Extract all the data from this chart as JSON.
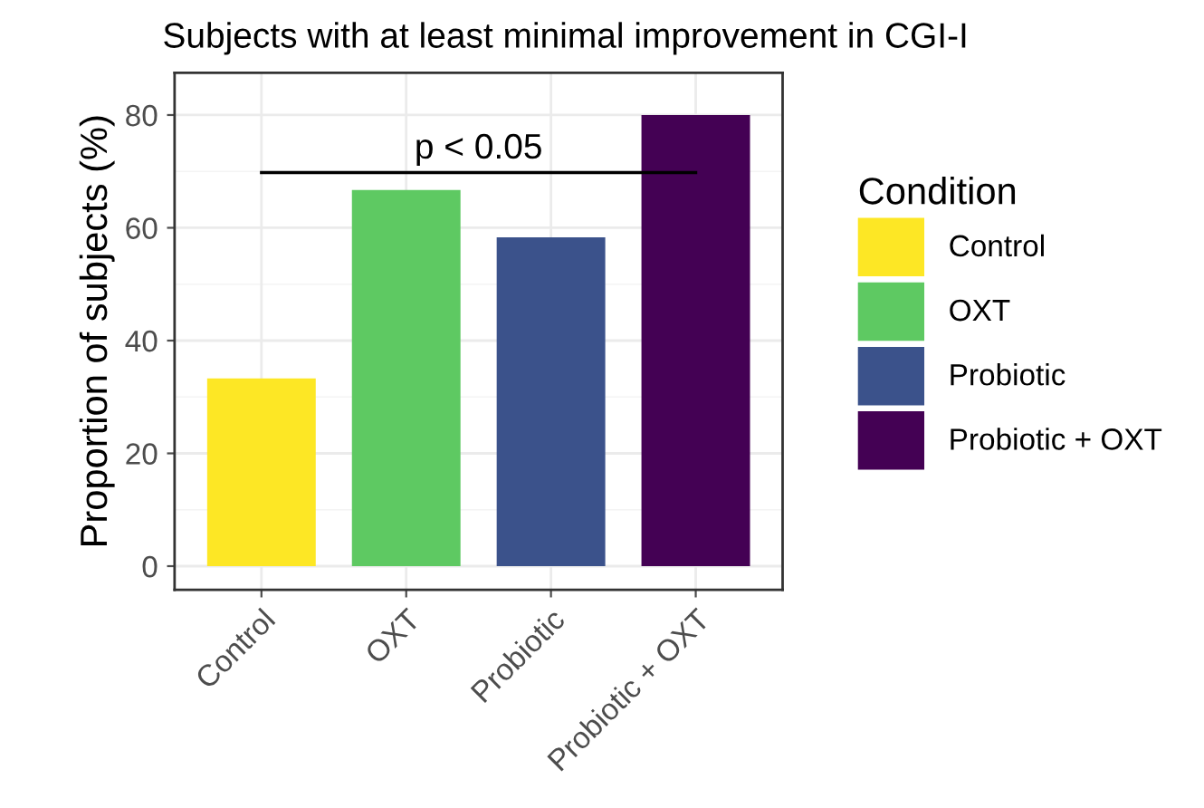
{
  "chart_data": {
    "type": "bar",
    "title": "Subjects with at least minimal improvement in CGI-I",
    "ylabel": "Proportion of subjects (%)",
    "legend_title": "Condition",
    "categories": [
      "Control",
      "OXT",
      "Probiotic",
      "Probiotic + OXT"
    ],
    "series": [
      {
        "name": "Control",
        "color": "#fde725",
        "values": [
          33.3,
          null,
          null,
          null
        ]
      },
      {
        "name": "OXT",
        "color": "#5ec962",
        "values": [
          null,
          66.7,
          null,
          null
        ]
      },
      {
        "name": "Probiotic",
        "color": "#3b528b",
        "values": [
          null,
          null,
          58.3,
          null
        ]
      },
      {
        "name": "Probiotic + OXT",
        "color": "#440154",
        "values": [
          null,
          null,
          null,
          80
        ]
      }
    ],
    "ylim": [
      -4.2,
      87.5
    ],
    "yticks": [
      0,
      20,
      40,
      60,
      80
    ],
    "grid": true,
    "legend": "right",
    "annotations": [
      "p < 0.05"
    ]
  }
}
